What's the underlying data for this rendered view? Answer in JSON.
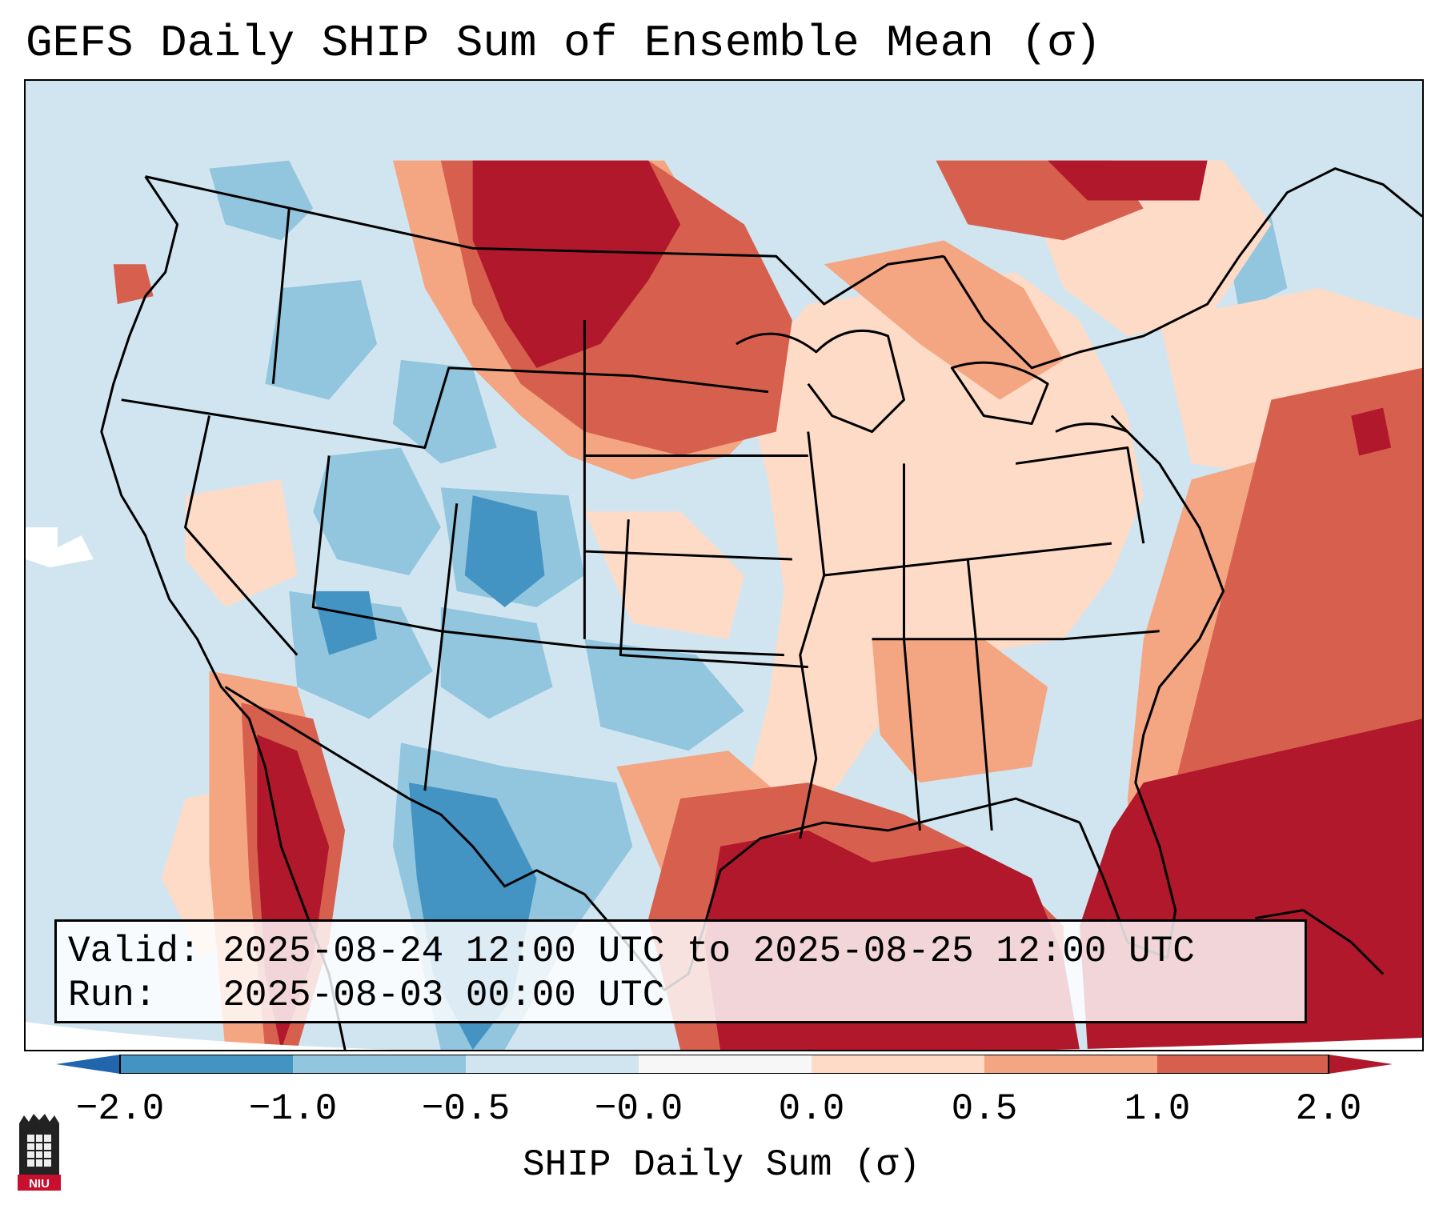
{
  "title": "GEFS Daily SHIP Sum of Ensemble Mean (σ)",
  "info": {
    "valid_line": "Valid: 2025-08-24 12:00 UTC to 2025-08-25 12:00 UTC",
    "run_line": "Run:   2025-08-03 00:00 UTC"
  },
  "colorbar": {
    "label": "SHIP Daily Sum (σ)",
    "ticks": [
      "−2.0",
      "−1.0",
      "−0.5",
      "−0.0",
      "0.0",
      "0.5",
      "1.0",
      "2.0"
    ],
    "colors": [
      "#2166ac",
      "#4393c3",
      "#92c5de",
      "#d1e5f0",
      "#f7f7f7",
      "#fddbc7",
      "#f4a582",
      "#d6604d",
      "#b2182b"
    ]
  },
  "logo": {
    "text": "NIU",
    "accent": "#c8102e"
  }
}
